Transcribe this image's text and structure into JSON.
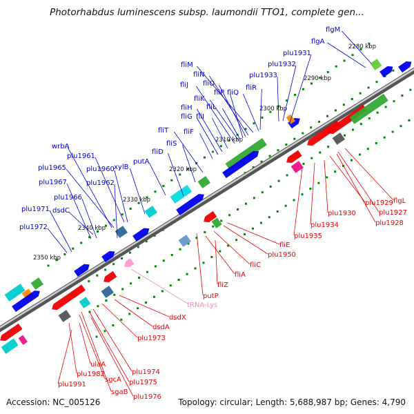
{
  "title": "Photorhabdus luminescens subsp. laumondii TTO1, complete gen...",
  "footer": {
    "accession": "Accession: NC_005126",
    "topology": "Topology: circular; Length: 5,688,987 bp; Genes: 4,790"
  },
  "colors": {
    "forward_label": "#0000dd",
    "reverse_label": "#ee0000",
    "trna_label": "#f090b0",
    "backbone": "#808080",
    "tick_dots": "#008800"
  },
  "scale_labels": [
    "2280 kbp",
    "2290 kbp",
    "2300 kbp",
    "2310 kbp",
    "2320 kbp",
    "2330 kbp",
    "2340 kbp",
    "2350 kbp"
  ],
  "forward_genes": [
    "flgM",
    "flgA",
    "plu1931",
    "plu1932",
    "plu1933",
    "fliM",
    "fliN",
    "fliO",
    "fliP",
    "fliQ",
    "fliR",
    "fliJ",
    "fliK",
    "fliL",
    "fliH",
    "fliI",
    "fliG",
    "fliF",
    "fliT",
    "fliS",
    "fliD",
    "putA",
    "xylB",
    "wrbA",
    "plu1961",
    "plu1960",
    "plu1965",
    "plu1962",
    "plu1967",
    "plu1966",
    "plu1971",
    "dsdC",
    "plu1972"
  ],
  "reverse_genes": [
    "flgL",
    "plu1927",
    "plu1928",
    "plu1929",
    "plu1930",
    "plu1934",
    "plu1935",
    "fliE",
    "plu1950",
    "fliC",
    "fliA",
    "fliZ",
    "putP",
    "dsdX",
    "dsdA",
    "plu1973",
    "plu1974",
    "plu1975",
    "plu1976",
    "ulaA",
    "plu1982",
    "sgcA",
    "sgaB",
    "plu1991"
  ],
  "trna_genes": [
    "tRNA-Lys"
  ]
}
